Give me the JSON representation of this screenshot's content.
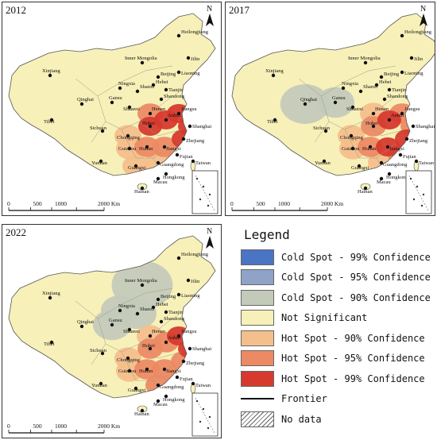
{
  "maps": [
    {
      "year": "2012",
      "hot99": [
        "Anhui",
        "Jiangsu",
        "Shanghai",
        "Zhejiang",
        "Hubei"
      ],
      "hot95": [
        "Hunan",
        "Jiangxi",
        "Henan"
      ],
      "hot90": [
        "Chongqing",
        "Guizhou",
        "Fujian",
        "Guangdong",
        "Guangxi"
      ],
      "cold90": []
    },
    {
      "year": "2017",
      "hot99": [
        "Zhejiang",
        "Jiangxi",
        "Anhui"
      ],
      "hot95": [
        "Hubei",
        "Hunan",
        "Jiangsu",
        "Fujian",
        "Shanghai"
      ],
      "hot90": [
        "Chongqing",
        "Guizhou",
        "Guangdong",
        "Henan"
      ],
      "cold90": [
        "Qinghai",
        "Gansu"
      ]
    },
    {
      "year": "2022",
      "hot99": [
        "Jiangsu",
        "Shanghai"
      ],
      "hot95": [
        "Hubei",
        "Hunan",
        "Jiangxi",
        "Zhejiang",
        "Anhui",
        "Guangdong"
      ],
      "hot90": [
        "Chongqing",
        "Guizhou",
        "Henan",
        "Fujian"
      ],
      "cold90": [
        "Inner Mongolia",
        "Gansu",
        "Ningxia",
        "Shanxi"
      ]
    }
  ],
  "labels": [
    "Heilongjiang",
    "Jilin",
    "Liaoning",
    "Inner Mongolia",
    "Xinjiang",
    "Qinghai",
    "Tibet",
    "Gansu",
    "Ningxia",
    "Shanxi",
    "Shaanxi",
    "Henan",
    "Shandong",
    "Hebei",
    "Beijing",
    "Tianjin",
    "Sichuan",
    "Chongqing",
    "Hubei",
    "Anhui",
    "Jiangsu",
    "Shanghai",
    "Zhejiang",
    "Hunan",
    "Jiangxi",
    "Fujian",
    "Guizhou",
    "Yunnan",
    "Guangxi",
    "Guangdong",
    "Taiwan",
    "Hongkong",
    "Macau",
    "Hainan"
  ],
  "scale": {
    "ticks": [
      "0",
      "500",
      "1000",
      "2000 Km"
    ]
  },
  "north": "N",
  "legend": {
    "title": "Legend",
    "items": [
      {
        "label": "Cold Spot - 99% Confidence",
        "color": "#4a74c4"
      },
      {
        "label": "Cold Spot - 95% Confidence",
        "color": "#8fa3c6"
      },
      {
        "label": "Cold Spot - 90% Confidence",
        "color": "#c4cab9"
      },
      {
        "label": "Not Significant",
        "color": "#f7f0b8"
      },
      {
        "label": "Hot Spot - 90% Confidence",
        "color": "#f4bf8c"
      },
      {
        "label": "Hot Spot - 95% Confidence",
        "color": "#ec8a64"
      },
      {
        "label": "Hot Spot - 99% Confidence",
        "color": "#d63a2e"
      }
    ],
    "frontier": "Frontier",
    "nodata": "No data"
  }
}
